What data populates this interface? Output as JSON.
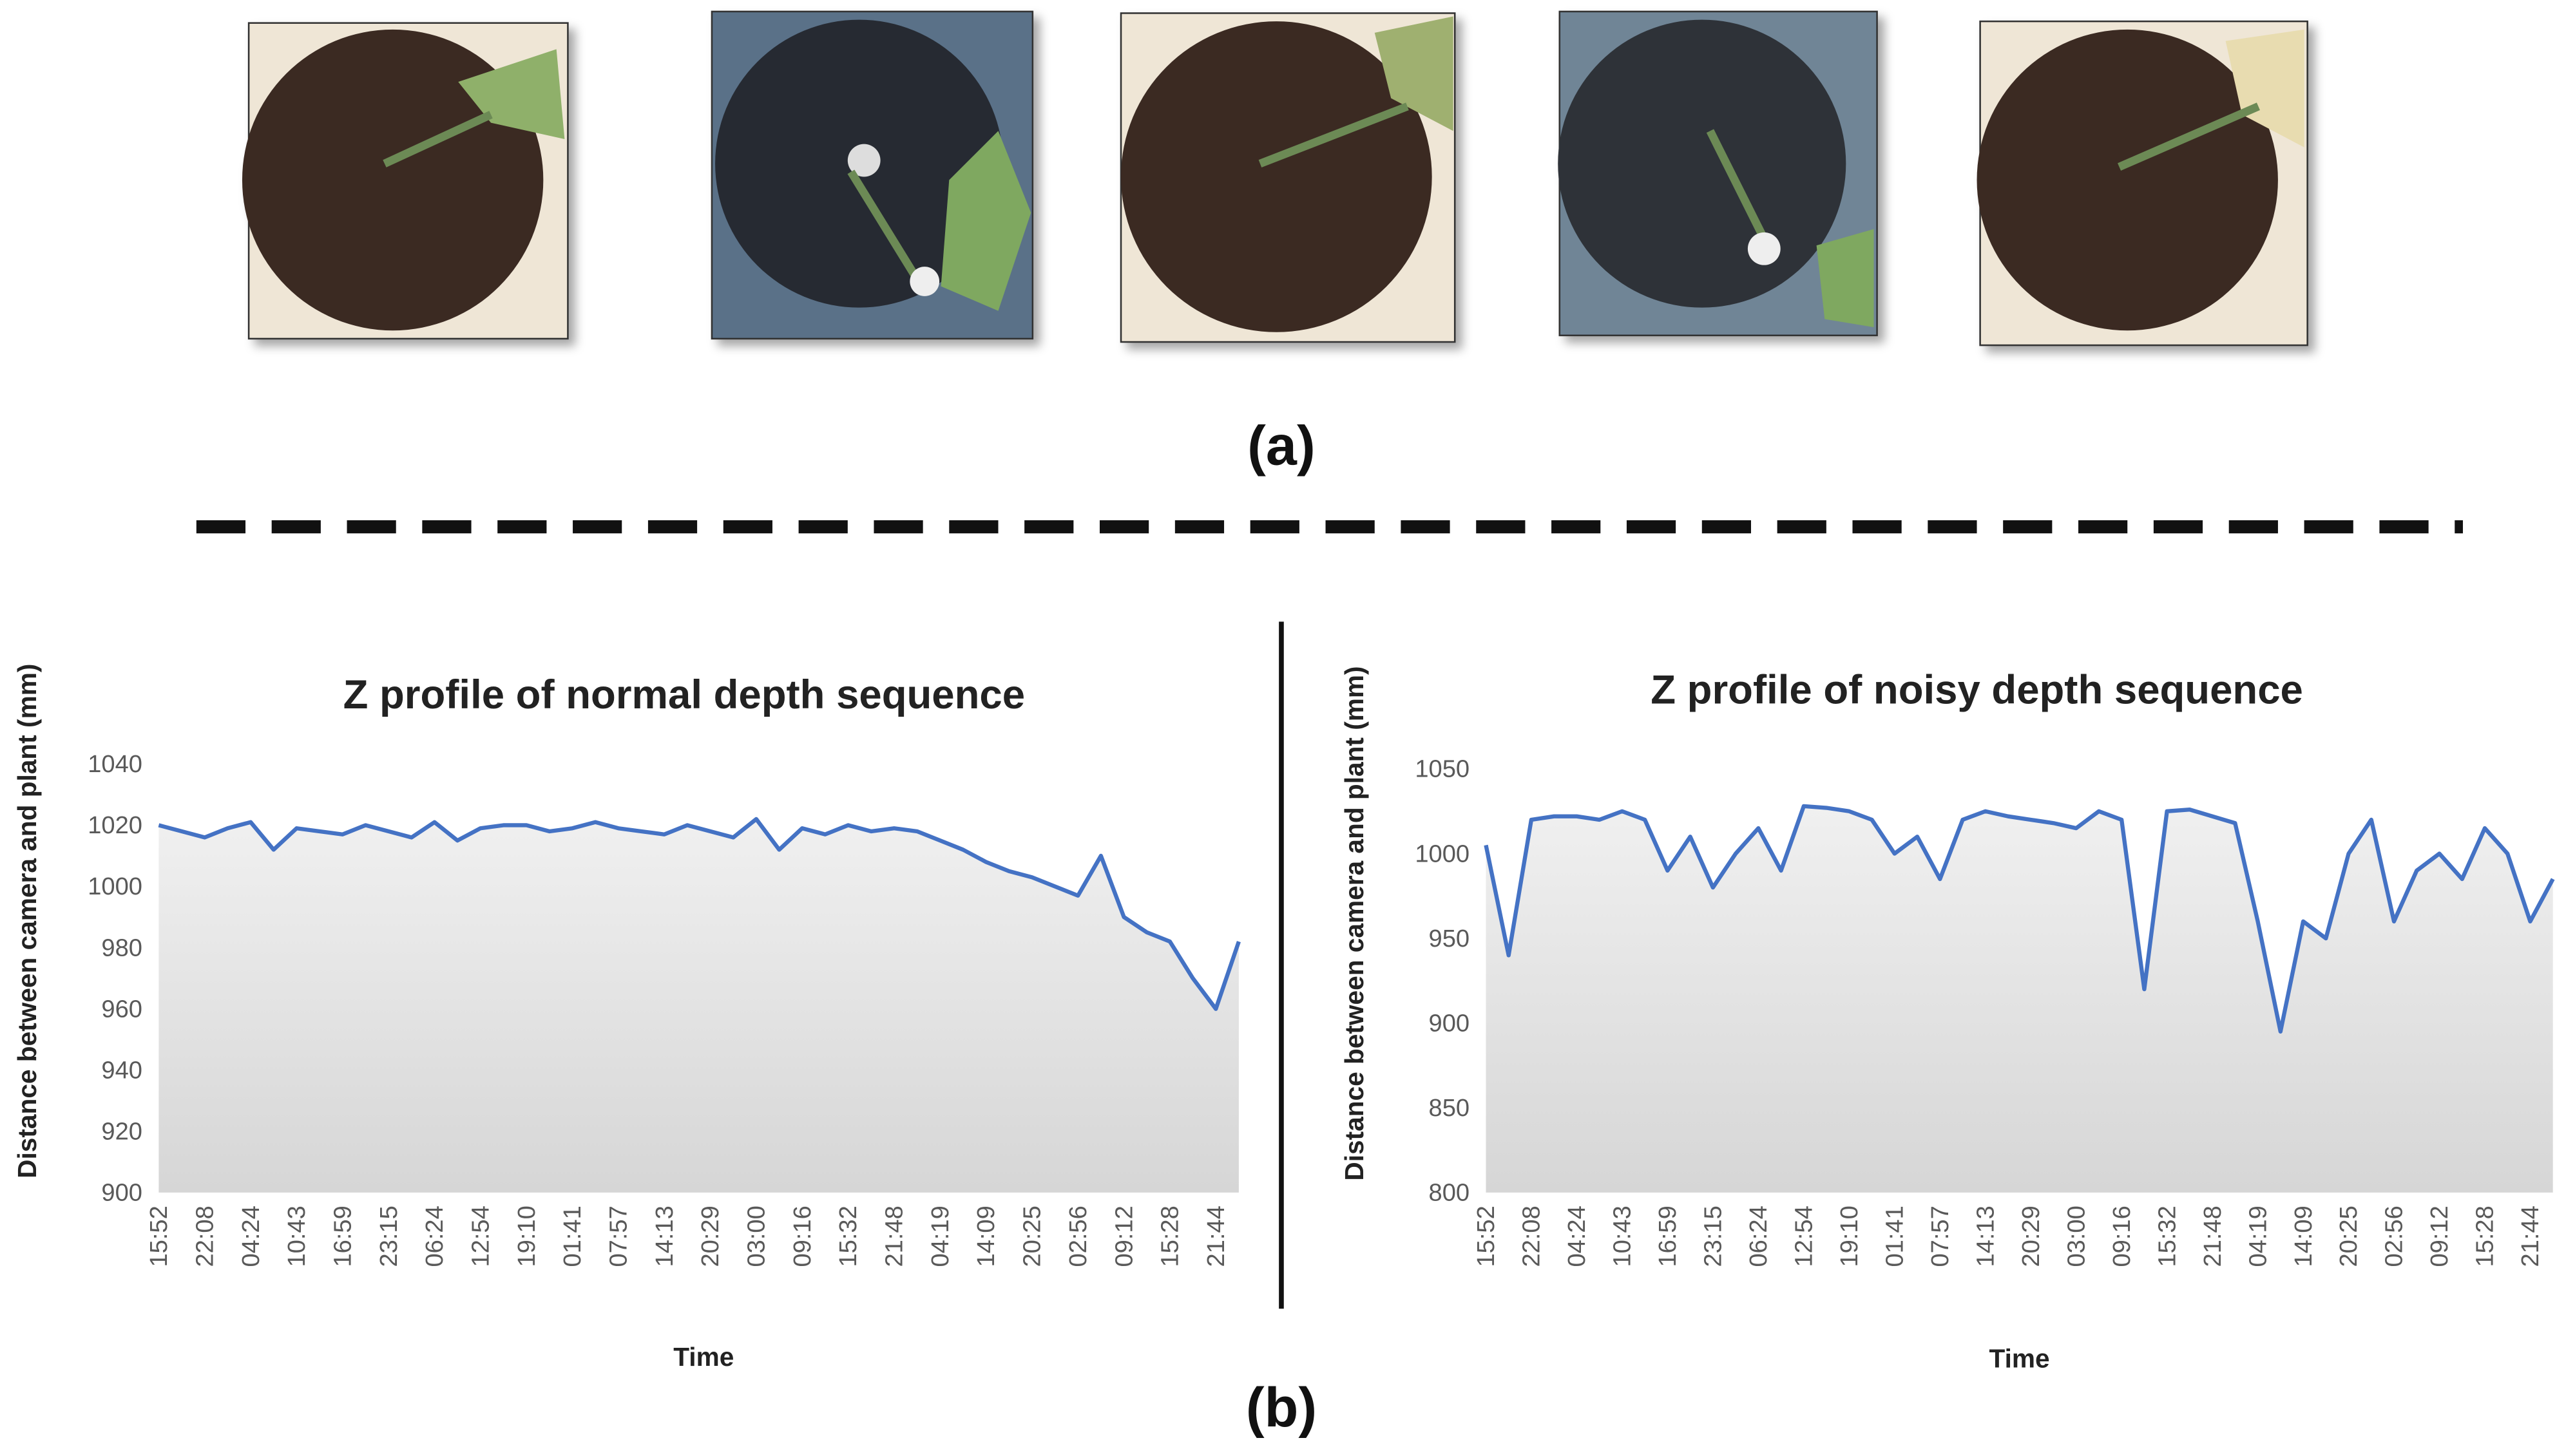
{
  "panel_labels": [
    "(a)",
    "(b)"
  ],
  "chart_data": [
    {
      "type": "area_line",
      "title": "Z profile of normal depth sequence",
      "xlabel": "Time",
      "ylabel": "Distance between camera and plant (mm)",
      "categories": [
        "15:52",
        null,
        "22:08",
        null,
        "04:24",
        null,
        "10:43",
        null,
        "16:59",
        null,
        "23:15",
        null,
        "06:24",
        null,
        "12:54",
        null,
        "19:10",
        null,
        "01:41",
        null,
        "07:57",
        null,
        "14:13",
        null,
        "20:29",
        null,
        "03:00",
        null,
        "09:16",
        null,
        "15:32",
        null,
        "21:48",
        null,
        "04:19",
        null,
        "14:09",
        null,
        "20:25",
        null,
        "02:56",
        null,
        "09:12",
        null,
        "15:28",
        null,
        "21:44",
        null
      ],
      "values": [
        1020,
        1018,
        1016,
        1019,
        1021,
        1012,
        1019,
        1018,
        1017,
        1020,
        1018,
        1016,
        1021,
        1015,
        1019,
        1020,
        1020,
        1018,
        1019,
        1021,
        1019,
        1018,
        1017,
        1020,
        1018,
        1016,
        1022,
        1012,
        1019,
        1017,
        1020,
        1018,
        1019,
        1018,
        1015,
        1012,
        1008,
        1005,
        1003,
        1000,
        997,
        1010,
        990,
        985,
        982,
        970,
        960,
        982
      ],
      "color": "#4472c4",
      "ylim": [
        900,
        1040
      ],
      "yticks": [
        900,
        920,
        940,
        960,
        980,
        1000,
        1020,
        1040
      ],
      "grid": false
    },
    {
      "type": "area_line",
      "title": "Z profile of noisy depth sequence",
      "xlabel": "Time",
      "ylabel": "Distance between camera and plant (mm)",
      "categories": [
        "15:52",
        null,
        "22:08",
        null,
        "04:24",
        null,
        "10:43",
        null,
        "16:59",
        null,
        "23:15",
        null,
        "06:24",
        null,
        "12:54",
        null,
        "19:10",
        null,
        "01:41",
        null,
        "07:57",
        null,
        "14:13",
        null,
        "20:29",
        null,
        "03:00",
        null,
        "09:16",
        null,
        "15:32",
        null,
        "21:48",
        null,
        "04:19",
        null,
        "14:09",
        null,
        "20:25",
        null,
        "02:56",
        null,
        "09:12",
        null,
        "15:28",
        null,
        "21:44",
        null
      ],
      "values": [
        1005,
        940,
        1020,
        1022,
        1022,
        1020,
        1025,
        1020,
        990,
        1010,
        980,
        1000,
        1015,
        990,
        1028,
        1027,
        1025,
        1020,
        1000,
        1010,
        985,
        1020,
        1025,
        1022,
        1020,
        1018,
        1015,
        1025,
        1020,
        920,
        1025,
        1026,
        1022,
        1018,
        960,
        895,
        960,
        950,
        1000,
        1020,
        960,
        990,
        1000,
        985,
        1015,
        1000,
        960,
        985
      ],
      "color": "#4472c4",
      "ylim": [
        800,
        1050
      ],
      "yticks": [
        800,
        850,
        900,
        950,
        1000,
        1050
      ],
      "grid": false
    }
  ]
}
